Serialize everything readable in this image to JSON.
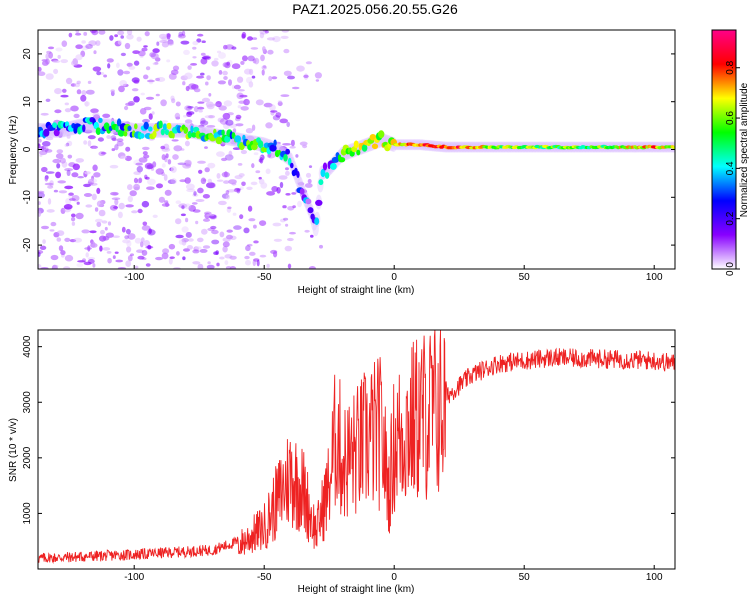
{
  "title": "PAZ1.2025.056.20.55.G26",
  "chart_data": [
    {
      "type": "heatmap",
      "xlabel": "Height of straight line (km)",
      "ylabel": "Frequency (Hz)",
      "xlim": [
        -137,
        108
      ],
      "ylim": [
        -25,
        25
      ],
      "xticks": [
        -100,
        -50,
        0,
        50,
        100
      ],
      "yticks": [
        -20,
        -10,
        0,
        10,
        20
      ],
      "colorbar": {
        "label": "Normalized spectral amplitude",
        "range": [
          0,
          0.95
        ],
        "ticks": [
          "0.0",
          "0.2",
          "0.4",
          "0.6",
          "0.8"
        ],
        "colors": [
          "#ffffff",
          "#8800ff",
          "#0000ff",
          "#00ffff",
          "#00ff00",
          "#ffff00",
          "#ff0000",
          "#ff0088"
        ]
      },
      "ridge": {
        "x": [
          -128,
          -120,
          -110,
          -100,
          -90,
          -80,
          -70,
          -60,
          -50,
          -45,
          -40,
          -35,
          -32,
          -30,
          -28,
          -25,
          -20,
          -15,
          -10,
          -5,
          0,
          10,
          20,
          40,
          60,
          80,
          100,
          108
        ],
        "y": [
          4,
          5,
          5,
          4,
          4,
          4,
          3,
          2,
          1,
          0,
          -2,
          -9,
          -13,
          -17,
          -5,
          -4,
          -1,
          0,
          1,
          2,
          1,
          1,
          0.5,
          0.5,
          0.5,
          0.5,
          0.5,
          0.5
        ],
        "amplitude": [
          0.3,
          0.35,
          0.4,
          0.45,
          0.5,
          0.5,
          0.45,
          0.45,
          0.45,
          0.4,
          0.35,
          0.25,
          0.2,
          0.2,
          0.3,
          0.3,
          0.45,
          0.55,
          0.6,
          0.65,
          0.7,
          0.8,
          0.85,
          0.6,
          0.55,
          0.55,
          0.75,
          0.6
        ]
      }
    },
    {
      "type": "line",
      "xlabel": "Height of straight line (km)",
      "ylabel": "SNR (10 * v/v)",
      "xlim": [
        -137,
        108
      ],
      "ylim": [
        0,
        4300
      ],
      "xticks": [
        -100,
        -50,
        0,
        50,
        100
      ],
      "yticks": [
        1000,
        2000,
        3000,
        4000
      ],
      "color": "#ee2222",
      "envelope": {
        "x": [
          -137,
          -100,
          -70,
          -60,
          -50,
          -45,
          -40,
          -35,
          -30,
          -25,
          -22,
          -20,
          -15,
          -10,
          -5,
          -2,
          0,
          5,
          10,
          20,
          30,
          40,
          60,
          80,
          100,
          108
        ],
        "y": [
          150,
          220,
          300,
          450,
          800,
          1300,
          1800,
          1500,
          700,
          1600,
          2700,
          2000,
          2200,
          2500,
          2600,
          1500,
          2400,
          2700,
          2900,
          3100,
          3500,
          3700,
          3800,
          3780,
          3750,
          3700
        ]
      }
    }
  ]
}
